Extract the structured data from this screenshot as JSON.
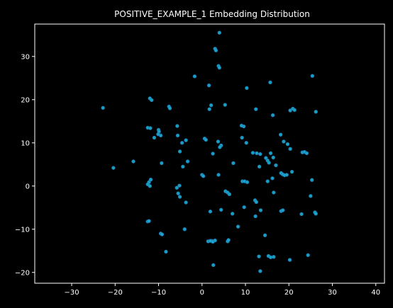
{
  "chart_data": {
    "type": "scatter",
    "title": "POSITIVE_EXAMPLE_1 Embedding Distribution",
    "xlabel": "",
    "ylabel": "",
    "xlim": [
      -38.5,
      42
    ],
    "ylim": [
      -22.5,
      37.5
    ],
    "xticks": [
      -30,
      -20,
      -10,
      0,
      10,
      20,
      30,
      40
    ],
    "yticks": [
      -20,
      -10,
      0,
      10,
      20,
      30
    ],
    "grid": false,
    "colors": {
      "background": "#000000",
      "axes": "#ffffff",
      "point": "#17b3d4",
      "point_dark": "#1f77b4"
    },
    "points": {
      "x": [
        4.0,
        3.0,
        3.2,
        3.8,
        4.0,
        1.6,
        25.4,
        -1.7,
        2.1,
        15.7,
        10.3,
        -12.0,
        -11.6,
        -22.8,
        -7.6,
        -7.4,
        1.7,
        5.3,
        20.3,
        20.9,
        21.3,
        26.2,
        16.3,
        12.4,
        9.6,
        9.1,
        -12.5,
        -11.9,
        -10.0,
        -9.9,
        -10.1,
        -9.5,
        -11.0,
        -5.7,
        -5.6,
        0.6,
        0.9,
        3.7,
        4.4,
        4.1,
        2.5,
        -4.6,
        -3.7,
        -5.1,
        9.2,
        10.2,
        11.7,
        12.6,
        13.4,
        18.1,
        18.8,
        19.7,
        20.3,
        15.8,
        16.4,
        14.7,
        15.1,
        15.4,
        23.1,
        23.6,
        24.1,
        17.0,
        13.2,
        -9.3,
        -15.8,
        -20.4,
        -3.3,
        -4.4,
        0.0,
        0.3,
        3.8,
        7.2,
        -11.8,
        -12.2,
        -12.5,
        -12.0,
        -5.2,
        -5.8,
        -5.5,
        -5.1,
        5.4,
        5.9,
        6.3,
        9.3,
        9.8,
        10.4,
        15.1,
        16.2,
        18.2,
        18.6,
        19.0,
        19.5,
        20.7,
        25.3,
        12.2,
        12.5,
        13.5,
        1.9,
        4.4,
        7.0,
        16.5,
        18.2,
        18.6,
        25.0,
        26.0,
        26.2,
        2.3,
        -4.0,
        8.3,
        12.3,
        14.5,
        22.9,
        -12.5,
        -12.2,
        -9.5,
        -9.2,
        -8.3,
        -3.7,
        1.4,
        1.9,
        2.5,
        3.0,
        5.9,
        6.1,
        13.1,
        15.3,
        15.8,
        16.5,
        24.4,
        20.2,
        13.4,
        2.6,
        9.7
      ],
      "y": [
        35.5,
        31.8,
        31.4,
        27.8,
        27.4,
        23.3,
        25.5,
        25.4,
        18.7,
        24.0,
        22.7,
        20.3,
        19.9,
        18.1,
        18.4,
        18.0,
        17.8,
        18.8,
        17.5,
        17.9,
        17.6,
        17.2,
        16.4,
        17.8,
        13.8,
        14.0,
        13.5,
        13.4,
        13.0,
        12.6,
        12.0,
        11.7,
        11.2,
        13.9,
        11.7,
        11.0,
        10.7,
        10.3,
        9.4,
        9.0,
        7.5,
        10.0,
        10.6,
        8.0,
        11.2,
        10.0,
        7.7,
        7.6,
        7.4,
        11.9,
        10.3,
        9.7,
        8.6,
        7.6,
        6.6,
        6.5,
        5.9,
        5.4,
        7.8,
        7.9,
        7.6,
        4.8,
        4.5,
        5.3,
        5.7,
        4.2,
        5.7,
        4.5,
        2.6,
        2.3,
        2.6,
        5.3,
        1.5,
        0.9,
        0.4,
        0.0,
        0.1,
        -0.4,
        -1.7,
        -2.5,
        -1.2,
        -1.5,
        -1.9,
        1.1,
        1.1,
        0.9,
        1.1,
        1.8,
        3.0,
        2.7,
        2.5,
        2.6,
        3.3,
        1.4,
        -3.3,
        -3.7,
        -5.6,
        -5.9,
        -5.5,
        -6.4,
        -1.5,
        -5.8,
        -5.6,
        -2.3,
        -6.1,
        -6.4,
        -12.7,
        -10.0,
        -9.4,
        -7.0,
        -11.4,
        -6.5,
        -8.2,
        -8.1,
        -11.0,
        -11.2,
        -15.2,
        -3.8,
        -12.8,
        -12.7,
        -12.9,
        -12.6,
        -12.8,
        -12.5,
        -16.3,
        -16.2,
        -16.5,
        -16.4,
        -16.0,
        -17.1,
        -19.7,
        -18.3,
        -4.9
      ]
    }
  }
}
